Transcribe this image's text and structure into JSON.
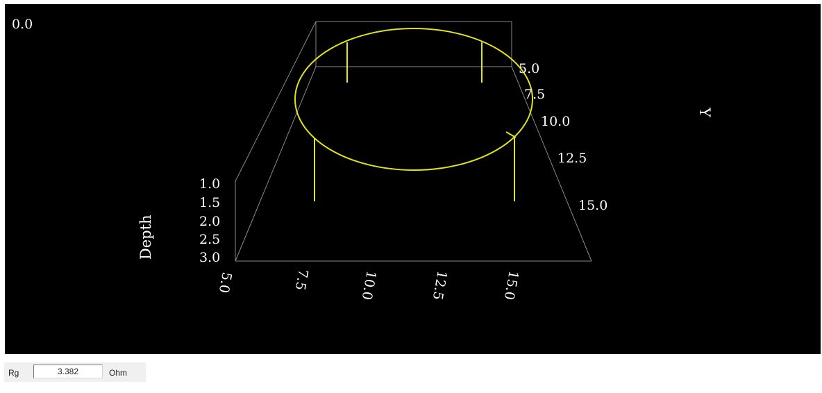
{
  "plot": {
    "corner_value": "0.0",
    "colors": {
      "background": "#000000",
      "wire": "#e3e31c",
      "frame": "#8a8a8a",
      "text": "#ffffff"
    },
    "axes": {
      "x": {
        "ticks": [
          "5.0",
          "7.5",
          "10.0",
          "12.5",
          "15.0"
        ]
      },
      "y": {
        "title": "Y",
        "ticks": [
          "5.0",
          "7.5",
          "10.0",
          "12.5",
          "15.0"
        ]
      },
      "depth": {
        "title": "Depth",
        "ticks": [
          "1.0",
          "1.5",
          "2.0",
          "2.5",
          "3.0"
        ]
      }
    }
  },
  "status": {
    "label": "Rg",
    "value": "3.382",
    "unit": "Ohm"
  }
}
